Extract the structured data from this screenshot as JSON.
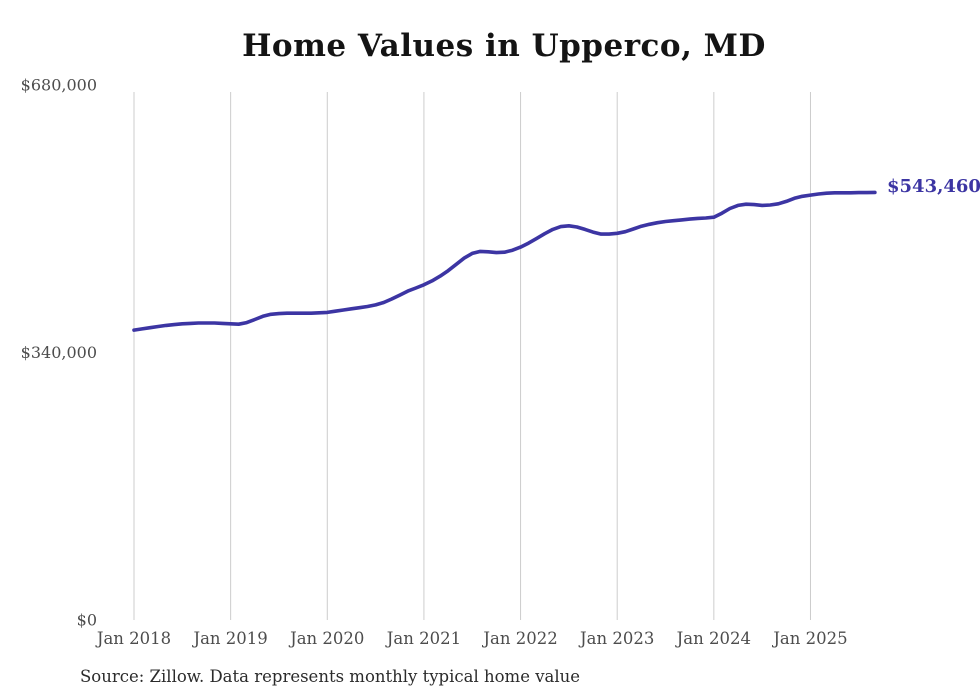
{
  "source_note": "Source: Zillow. Data represents monthly typical home value",
  "chart_data": {
    "type": "line",
    "title": "Home Values in Upperco, MD",
    "series_name": "Monthly typical home value",
    "start_month": "2018-01",
    "end_month": "2025-09",
    "frequency": "monthly",
    "values": [
      368500,
      370000,
      371500,
      373000,
      374500,
      375500,
      376500,
      377000,
      377500,
      377500,
      377500,
      377000,
      376500,
      376000,
      378000,
      382000,
      386000,
      388500,
      389500,
      390000,
      390000,
      390000,
      390000,
      390500,
      391000,
      392500,
      394000,
      395500,
      397000,
      398500,
      400500,
      403500,
      408000,
      413000,
      418000,
      422000,
      426000,
      431000,
      437000,
      444000,
      452000,
      460000,
      466000,
      468500,
      468000,
      467000,
      467500,
      470000,
      474000,
      479000,
      485000,
      491000,
      496500,
      500000,
      501000,
      499500,
      496500,
      493000,
      490500,
      490500,
      491500,
      493500,
      497000,
      500500,
      503000,
      505000,
      506500,
      507500,
      508500,
      509500,
      510500,
      511000,
      512000,
      517000,
      523000,
      527000,
      528500,
      528000,
      527000,
      527500,
      529000,
      532000,
      536000,
      538500,
      540000,
      541500,
      542500,
      543000,
      543000,
      543000,
      543200,
      543300,
      543460
    ],
    "final_value": 543460,
    "final_value_label": "$543,460",
    "x_tick_labels": [
      "Jan 2018",
      "Jan 2019",
      "Jan 2020",
      "Jan 2021",
      "Jan 2022",
      "Jan 2023",
      "Jan 2024",
      "Jan 2025"
    ],
    "y_ticks": [
      0,
      340000,
      680000
    ],
    "y_tick_labels": [
      "$0",
      "$340,000",
      "$680,000"
    ],
    "ylim": [
      0,
      680000
    ],
    "grid": "vertical-yearly-only",
    "legend": "none",
    "line_color": "#3c35a3",
    "label_color": "#3c35a3",
    "gridline_color": "#cccccc",
    "tick_text_color": "#4d4d4d"
  }
}
